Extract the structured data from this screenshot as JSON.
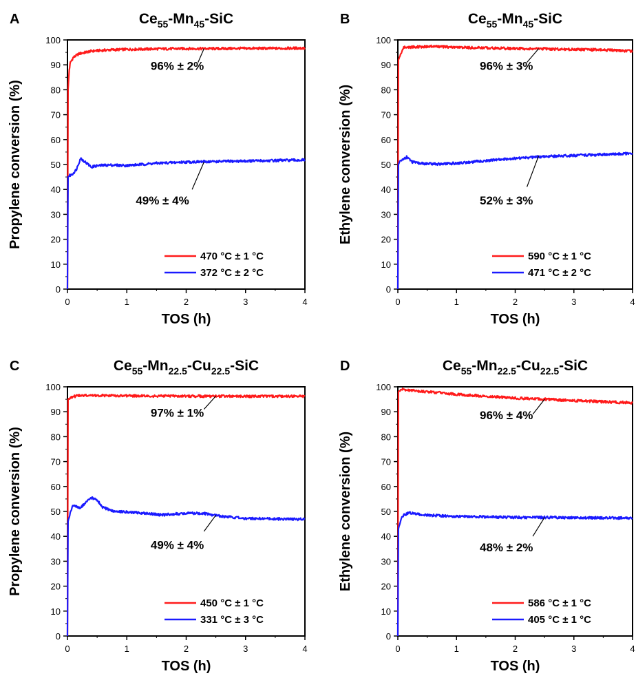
{
  "colors": {
    "red": "#ff1a1a",
    "blue": "#1a1aff",
    "axis": "#000000"
  },
  "chart_data": [
    {
      "panel": "A",
      "type": "line",
      "title": {
        "base": "Ce",
        "parts": [
          [
            "55",
            "sub"
          ],
          [
            "-Mn",
            "base"
          ],
          [
            "45",
            "sub"
          ],
          [
            "-SiC",
            "base"
          ]
        ]
      },
      "xlabel": "TOS (h)",
      "ylabel": "Propylene conversion (%)",
      "xlim": [
        0,
        4
      ],
      "ylim": [
        0,
        100
      ],
      "xticks": [
        0,
        1,
        2,
        3,
        4
      ],
      "yticks": [
        0,
        10,
        20,
        30,
        40,
        50,
        60,
        70,
        80,
        90,
        100
      ],
      "grid": false,
      "legend_position": "bottom-right",
      "series": [
        {
          "name": "470 °C ± 1 °C",
          "color": "#ff1a1a",
          "x": [
            0,
            0.01,
            0.03,
            0.05,
            0.1,
            0.2,
            0.4,
            0.7,
            1,
            1.5,
            2,
            2.5,
            3,
            3.5,
            4
          ],
          "y": [
            0,
            80,
            88,
            91,
            93,
            94.5,
            95.5,
            96,
            96.2,
            96.4,
            96.5,
            96.5,
            96.6,
            96.6,
            96.7
          ]
        },
        {
          "name": "372 °C ± 2 °C",
          "color": "#1a1aff",
          "x": [
            0,
            0.01,
            0.03,
            0.08,
            0.15,
            0.22,
            0.3,
            0.4,
            0.5,
            0.7,
            1,
            1.5,
            2,
            2.5,
            3,
            3.5,
            4
          ],
          "y": [
            0,
            45,
            45.5,
            46,
            48,
            52.5,
            51,
            49,
            49.5,
            49.8,
            49.6,
            50.5,
            51,
            51.2,
            51.4,
            51.6,
            51.8
          ]
        }
      ],
      "annotations": [
        {
          "text": "96% ± 2%",
          "x": 2.3,
          "y": 96.5,
          "tx": 1.85,
          "ty": 88,
          "lx": 2.2,
          "ly": 91
        },
        {
          "text": "49% ± 4%",
          "x": 2.3,
          "y": 51,
          "tx": 1.6,
          "ty": 34,
          "lx": 2.1,
          "ly": 40
        }
      ]
    },
    {
      "panel": "B",
      "type": "line",
      "title": {
        "base": "Ce",
        "parts": [
          [
            "55",
            "sub"
          ],
          [
            "-Mn",
            "base"
          ],
          [
            "45",
            "sub"
          ],
          [
            "-SiC",
            "base"
          ]
        ]
      },
      "xlabel": "TOS (h)",
      "ylabel": "Ethylene conversion (%)",
      "xlim": [
        0,
        4
      ],
      "ylim": [
        0,
        100
      ],
      "xticks": [
        0,
        1,
        2,
        3,
        4
      ],
      "yticks": [
        0,
        10,
        20,
        30,
        40,
        50,
        60,
        70,
        80,
        90,
        100
      ],
      "grid": false,
      "legend_position": "bottom-right",
      "series": [
        {
          "name": "590 °C ± 1 °C",
          "color": "#ff1a1a",
          "x": [
            0,
            0.01,
            0.03,
            0.06,
            0.1,
            0.3,
            0.6,
            1,
            1.5,
            2,
            2.5,
            3,
            3.5,
            4
          ],
          "y": [
            0,
            92,
            93,
            95,
            97,
            97.2,
            97.4,
            97,
            96.8,
            96.5,
            96.4,
            96.2,
            96,
            95.5
          ]
        },
        {
          "name": "471 °C ± 2 °C",
          "color": "#1a1aff",
          "x": [
            0,
            0.01,
            0.03,
            0.08,
            0.15,
            0.25,
            0.35,
            0.5,
            0.7,
            1,
            1.5,
            2,
            2.5,
            3,
            3.5,
            4
          ],
          "y": [
            0,
            50,
            51,
            52,
            53,
            51,
            50.5,
            50.3,
            50.2,
            50.5,
            51.5,
            52.5,
            53.2,
            53.6,
            54,
            54.5
          ]
        }
      ],
      "annotations": [
        {
          "text": "96% ± 3%",
          "x": 2.4,
          "y": 96.5,
          "tx": 1.85,
          "ty": 88,
          "lx": 2.2,
          "ly": 91
        },
        {
          "text": "52% ± 3%",
          "x": 2.4,
          "y": 53.5,
          "tx": 1.85,
          "ty": 34,
          "lx": 2.2,
          "ly": 41
        }
      ]
    },
    {
      "panel": "C",
      "type": "line",
      "title": {
        "base": "Ce",
        "parts": [
          [
            "55",
            "sub"
          ],
          [
            "-Mn",
            "base"
          ],
          [
            "22.5",
            "sub"
          ],
          [
            "-Cu",
            "base"
          ],
          [
            "22.5",
            "sub"
          ],
          [
            "-SiC",
            "base"
          ]
        ]
      },
      "xlabel": "TOS (h)",
      "ylabel": "Propylene conversion (%)",
      "xlim": [
        0,
        4
      ],
      "ylim": [
        0,
        100
      ],
      "xticks": [
        0,
        1,
        2,
        3,
        4
      ],
      "yticks": [
        0,
        10,
        20,
        30,
        40,
        50,
        60,
        70,
        80,
        90,
        100
      ],
      "grid": false,
      "legend_position": "bottom-right",
      "series": [
        {
          "name": "450 °C ± 1 °C",
          "color": "#ff1a1a",
          "x": [
            0,
            0.01,
            0.03,
            0.08,
            0.2,
            0.5,
            1,
            1.5,
            2,
            2.5,
            3,
            3.5,
            4
          ],
          "y": [
            0,
            95,
            95.5,
            96,
            96.5,
            96.5,
            96.4,
            96.3,
            96.3,
            96.2,
            96.2,
            96.2,
            96.2
          ]
        },
        {
          "name": "331 °C ± 3 °C",
          "color": "#1a1aff",
          "x": [
            0,
            0.01,
            0.03,
            0.08,
            0.15,
            0.22,
            0.3,
            0.4,
            0.5,
            0.6,
            0.8,
            1,
            1.3,
            1.6,
            2,
            2.3,
            2.6,
            3,
            3.5,
            4
          ],
          "y": [
            0,
            46,
            48,
            52,
            52,
            51.5,
            53.5,
            55.5,
            54.5,
            51.5,
            50,
            49.8,
            49.2,
            48.6,
            49.3,
            49.2,
            48,
            47.2,
            47,
            46.8
          ]
        }
      ],
      "annotations": [
        {
          "text": "97% ± 1%",
          "x": 2.5,
          "y": 96.3,
          "tx": 1.85,
          "ty": 88,
          "lx": 2.3,
          "ly": 91
        },
        {
          "text": "49% ± 4%",
          "x": 2.5,
          "y": 48.5,
          "tx": 1.85,
          "ty": 35,
          "lx": 2.3,
          "ly": 42
        }
      ]
    },
    {
      "panel": "D",
      "type": "line",
      "title": {
        "base": "Ce",
        "parts": [
          [
            "55",
            "sub"
          ],
          [
            "-Mn",
            "base"
          ],
          [
            "22.5",
            "sub"
          ],
          [
            "-Cu",
            "base"
          ],
          [
            "22.5",
            "sub"
          ],
          [
            "-SiC",
            "base"
          ]
        ]
      },
      "xlabel": "TOS (h)",
      "ylabel": "Ethylene conversion (%)",
      "xlim": [
        0,
        4
      ],
      "ylim": [
        0,
        100
      ],
      "xticks": [
        0,
        1,
        2,
        3,
        4
      ],
      "yticks": [
        0,
        10,
        20,
        30,
        40,
        50,
        60,
        70,
        80,
        90,
        100
      ],
      "grid": false,
      "legend_position": "bottom-right",
      "series": [
        {
          "name": "586 °C ± 1 °C",
          "color": "#ff1a1a",
          "x": [
            0,
            0.01,
            0.03,
            0.06,
            0.2,
            0.5,
            1,
            1.5,
            2,
            2.5,
            3,
            3.5,
            4
          ],
          "y": [
            0,
            98,
            98.6,
            99,
            98.6,
            98,
            97,
            96.2,
            95.5,
            95,
            94.5,
            94,
            93.6
          ]
        },
        {
          "name": "405 °C ± 1 °C",
          "color": "#1a1aff",
          "x": [
            0,
            0.01,
            0.03,
            0.06,
            0.1,
            0.2,
            0.3,
            0.5,
            0.8,
            1,
            1.5,
            2,
            2.5,
            3,
            3.5,
            4
          ],
          "y": [
            0,
            43,
            45,
            47,
            48.5,
            49.5,
            49,
            48.5,
            48.2,
            48,
            47.8,
            47.6,
            47.6,
            47.5,
            47.4,
            47.3
          ]
        }
      ],
      "annotations": [
        {
          "text": "96% ± 4%",
          "x": 2.5,
          "y": 95,
          "tx": 1.85,
          "ty": 87,
          "lx": 2.3,
          "ly": 89
        },
        {
          "text": "48% ± 2%",
          "x": 2.5,
          "y": 47.6,
          "tx": 1.85,
          "ty": 34,
          "lx": 2.3,
          "ly": 40
        }
      ]
    }
  ]
}
